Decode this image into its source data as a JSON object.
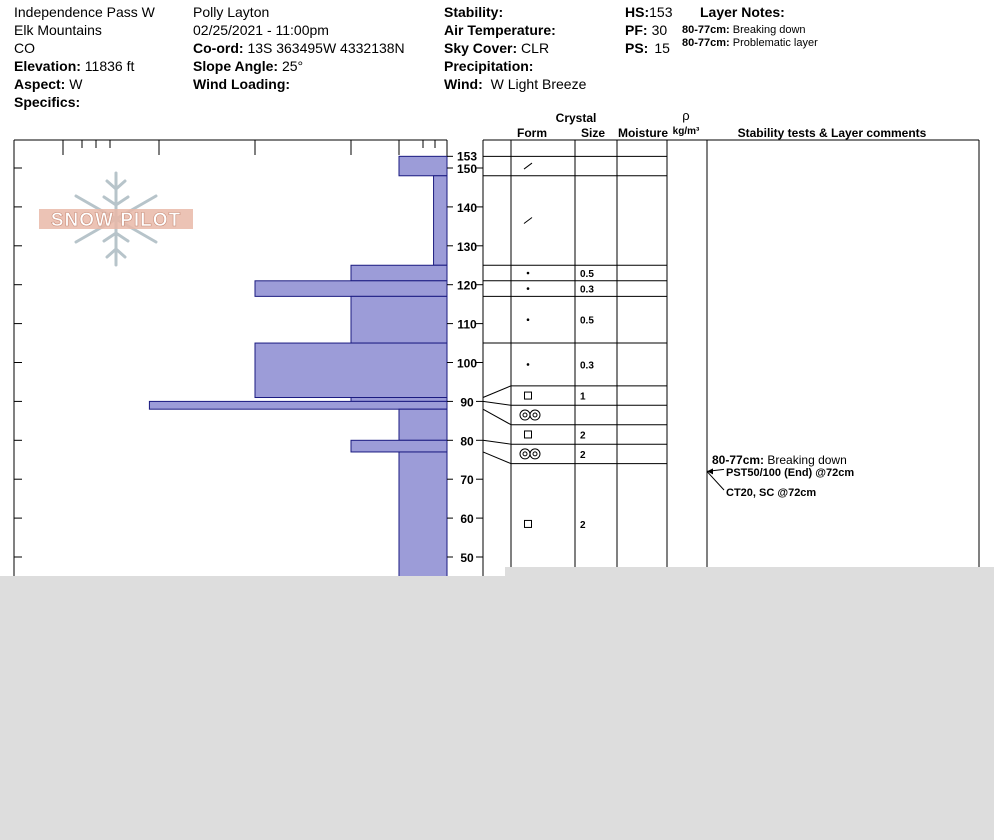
{
  "header": {
    "location": "Independence Pass W",
    "range": "Elk Mountains",
    "state": "CO",
    "elevation_label": "Elevation:",
    "elevation_value": "11836 ft",
    "aspect_label": "Aspect:",
    "aspect_value": "W",
    "specifics_label": "Specifics:",
    "observer": "Polly Layton",
    "datetime": "02/25/2021 - 11:00pm",
    "coord_label": "Co-ord:",
    "coord_value": "13S 363495W 4332138N",
    "slope_label": "Slope Angle:",
    "slope_value": "25°",
    "wind_loading_label": "Wind Loading:",
    "stability_label": "Stability:",
    "air_temp_label": "Air Temperature:",
    "sky_label": "Sky Cover:",
    "sky_value": "CLR",
    "precip_label": "Precipitation:",
    "wind_label": "Wind:",
    "wind_value": "W Light Breeze",
    "hs_label": "HS:",
    "hs_value": "153",
    "pf_label": "PF:",
    "pf_value": "30",
    "ps_label": "PS:",
    "ps_value": "15",
    "layer_notes_label": "Layer Notes:",
    "layer_notes": [
      {
        "range": "80-77cm:",
        "text": "Breaking down"
      },
      {
        "range": "80-77cm:",
        "text": "Problematic layer"
      }
    ]
  },
  "logo_text": "SNOW PILOT",
  "table_headers": {
    "crystal": "Crystal",
    "form": "Form",
    "size": "Size",
    "moisture": "Moisture",
    "rho": "ρ",
    "density_unit": "kg/m³",
    "comments": "Stability tests & Layer comments"
  },
  "colors": {
    "hardness_fill": "#9c9cd8",
    "hardness_stroke": "#1a1a80",
    "background_cover": "#dddddd"
  },
  "chart_data": {
    "type": "bar",
    "description_axis": "snow height (cm)",
    "ylim": [
      43,
      160
    ],
    "y_ticks": [
      50,
      60,
      70,
      80,
      90,
      100,
      110,
      120,
      130,
      140,
      150
    ],
    "y_extra_ticks": [
      153
    ],
    "hardness_scale": "F (right) to K (left)",
    "layers": [
      {
        "top": 153,
        "bottom": 148,
        "hardness": 1.0
      },
      {
        "top": 148,
        "bottom": 125,
        "hardness": 0.28
      },
      {
        "top": 125,
        "bottom": 121,
        "hardness": 2.0
      },
      {
        "top": 121,
        "bottom": 117,
        "hardness": 4.0
      },
      {
        "top": 117,
        "bottom": 105,
        "hardness": 2.0
      },
      {
        "top": 105,
        "bottom": 91,
        "hardness": 4.0
      },
      {
        "top": 91,
        "bottom": 90,
        "hardness": 2.0
      },
      {
        "top": 90,
        "bottom": 88,
        "hardness": 6.2
      },
      {
        "top": 88,
        "bottom": 80,
        "hardness": 1.0
      },
      {
        "top": 80,
        "bottom": 77,
        "hardness": 2.0
      },
      {
        "top": 77,
        "bottom": 43,
        "hardness": 1.0
      }
    ],
    "grain_rows": [
      {
        "top": 153,
        "bottom": 148,
        "form": "slash",
        "size": ""
      },
      {
        "top": 148,
        "bottom": 125,
        "form": "slash",
        "size": ""
      },
      {
        "top": 125,
        "bottom": 121,
        "form": "dot",
        "size": "0.5"
      },
      {
        "top": 121,
        "bottom": 117,
        "form": "dot",
        "size": "0.3"
      },
      {
        "top": 117,
        "bottom": 105,
        "form": "dot",
        "size": "0.5"
      },
      {
        "top": 105,
        "bottom": 94,
        "form": "dot",
        "size": "0.3"
      },
      {
        "top": 94,
        "bottom": 89,
        "form": "square",
        "size": "1"
      },
      {
        "top": 89,
        "bottom": 84,
        "form": "double-circle",
        "size": ""
      },
      {
        "top": 84,
        "bottom": 79,
        "form": "square",
        "size": "2"
      },
      {
        "top": 79,
        "bottom": 74,
        "form": "double-circle",
        "size": "2"
      },
      {
        "top": 74,
        "bottom": 43,
        "form": "square",
        "size": "2"
      }
    ],
    "comments": [
      {
        "label": "80-77cm:",
        "text": "Breaking down"
      },
      {
        "label": "",
        "text": "PST50/100 (End) @72cm"
      },
      {
        "label": "",
        "text": "CT20, SC @72cm"
      }
    ]
  }
}
